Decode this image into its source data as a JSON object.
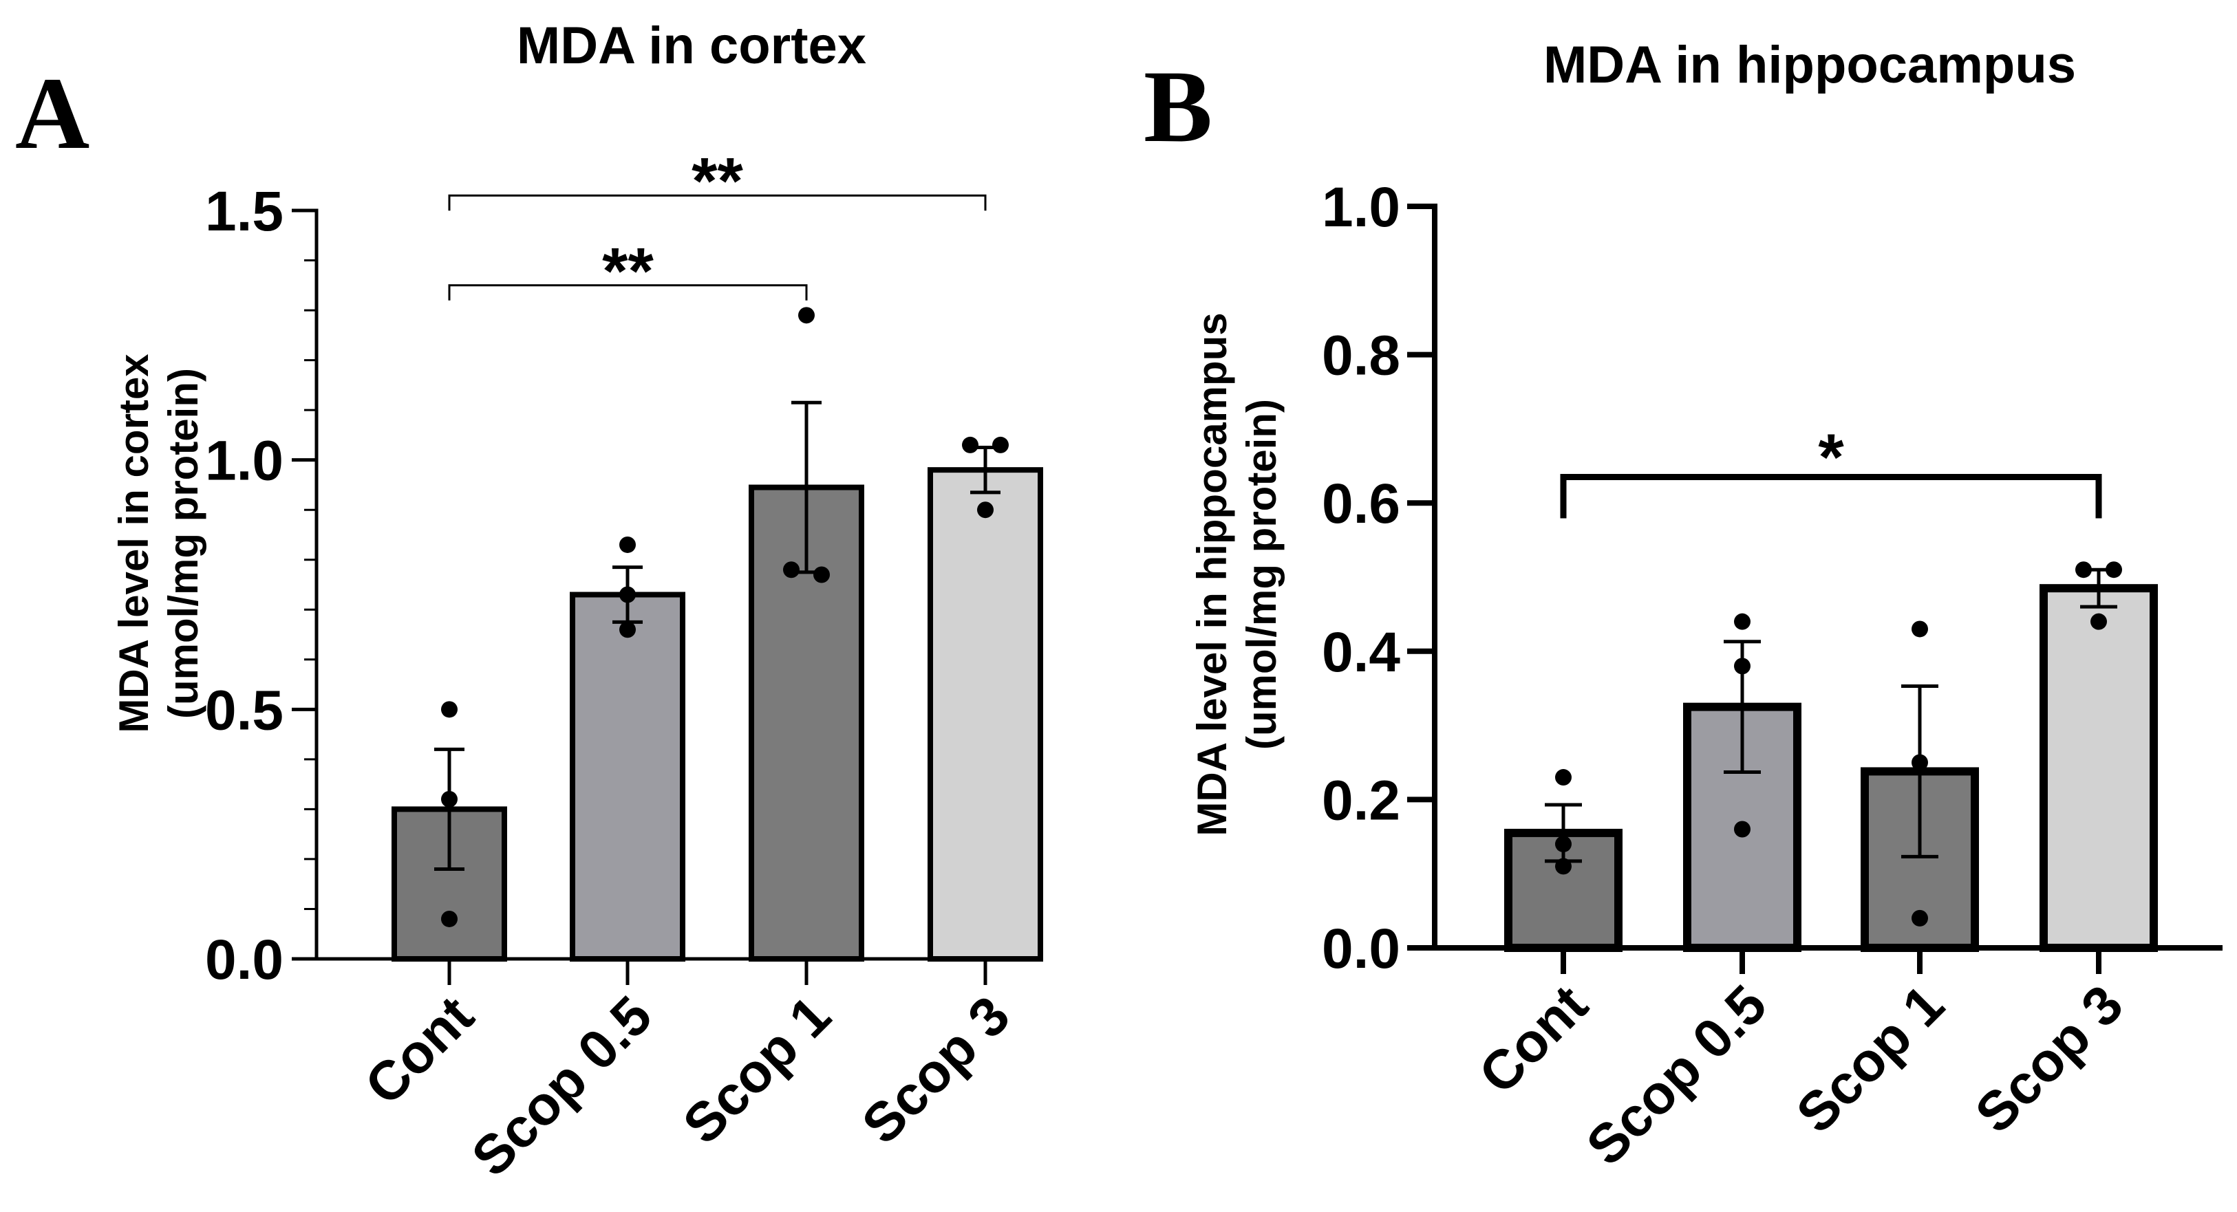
{
  "chart_data": [
    {
      "panel": "A",
      "type": "bar",
      "title": "MDA in cortex",
      "ylabel_line1": "MDA level in cortex",
      "ylabel_line2": "(umol/mg protein)",
      "xlabel": "",
      "categories": [
        "Cont",
        "Scop 0.5",
        "Scop 1",
        "Scop 3"
      ],
      "values": [
        0.3,
        0.73,
        0.945,
        0.98
      ],
      "sem": [
        0.12,
        0.055,
        0.17,
        0.045
      ],
      "points": [
        [
          0.5,
          0.32,
          0.08
        ],
        [
          0.83,
          0.73,
          0.66
        ],
        [
          1.29,
          0.78,
          0.77
        ],
        [
          1.03,
          1.03,
          0.9
        ]
      ],
      "bar_colors": [
        "#777777",
        "#9c9ca2",
        "#7b7b7b",
        "#d2d2d2"
      ],
      "ylim": [
        0,
        1.5
      ],
      "yticks": [
        0.0,
        0.5,
        1.0,
        1.5
      ],
      "ytick_labels": [
        "0.0",
        "0.5",
        "1.0",
        "1.5"
      ],
      "minor_tick_step": 0.1,
      "significance": [
        {
          "from": 0,
          "to": 2,
          "y": 1.35,
          "label": "**"
        },
        {
          "from": 0,
          "to": 3,
          "y": 1.53,
          "label": "**"
        }
      ]
    },
    {
      "panel": "B",
      "type": "bar",
      "title": "MDA in hippocampus",
      "ylabel_line1": "MDA level in hippocampus",
      "ylabel_line2": "(umol/mg protein)",
      "xlabel": "",
      "categories": [
        "Cont",
        "Scop 0.5",
        "Scop 1",
        "Scop 3"
      ],
      "values": [
        0.155,
        0.325,
        0.238,
        0.485
      ],
      "sem": [
        0.038,
        0.088,
        0.115,
        0.025
      ],
      "points": [
        [
          0.23,
          0.14,
          0.11
        ],
        [
          0.44,
          0.38,
          0.16
        ],
        [
          0.43,
          0.25,
          0.04
        ],
        [
          0.51,
          0.51,
          0.44
        ]
      ],
      "bar_colors": [
        "#777777",
        "#9c9ca2",
        "#7b7b7b",
        "#d2d2d2"
      ],
      "ylim": [
        0,
        1.0
      ],
      "yticks": [
        0.0,
        0.2,
        0.4,
        0.6,
        0.8,
        1.0
      ],
      "ytick_labels": [
        "0.0",
        "0.2",
        "0.4",
        "0.6",
        "0.8",
        "1.0"
      ],
      "minor_tick_step": null,
      "significance": [
        {
          "from": 0,
          "to": 3,
          "y": 0.635,
          "label": "*"
        }
      ]
    }
  ]
}
